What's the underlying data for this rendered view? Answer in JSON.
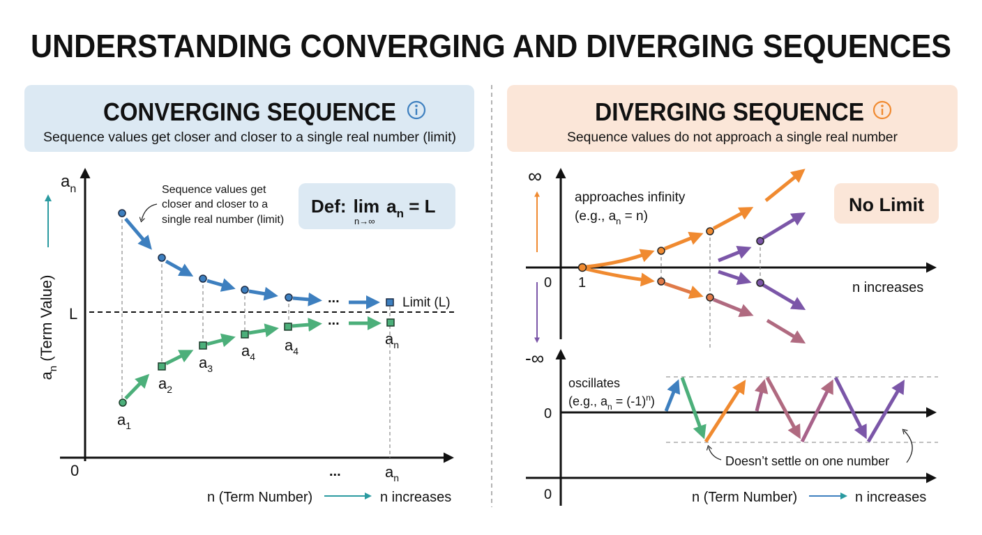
{
  "title": "UNDERSTANDING CONVERGING AND DIVERGING SEQUENCES",
  "colors": {
    "converging_panel": "#dce9f3",
    "diverging_panel": "#fbe6d8",
    "blue": "#3d7fbf",
    "green": "#4caf7a",
    "orange": "#f08a30",
    "purple": "#7b56a8",
    "mauve": "#b06a80",
    "teal": "#2a9aa0"
  },
  "converging": {
    "heading": "CONVERGING SEQUENCE",
    "info_icon": "info-circle-icon",
    "subtitle": "Sequence values get closer and closer to a single real number (limit)",
    "y_top_label": {
      "base": "a",
      "sub": "n"
    },
    "y_axis_label": {
      "base": "a",
      "sub": "n",
      "rest": " (Term Value)"
    },
    "origin": "0",
    "limit_tick": "L",
    "annotation": [
      "Sequence values get",
      "closer and closer to a",
      "single real number (limit)"
    ],
    "definition": {
      "prefix": "Def:",
      "lim": "lim",
      "under": "n→∞",
      "a": "a",
      "sub": "n",
      "rest": " = L"
    },
    "limit_label": "Limit (L)",
    "ellipsis": "...",
    "point_labels": [
      {
        "base": "a",
        "sub": "1"
      },
      {
        "base": "a",
        "sub": "2"
      },
      {
        "base": "a",
        "sub": "3"
      },
      {
        "base": "a",
        "sub": "4"
      },
      {
        "base": "a",
        "sub": "4"
      },
      {
        "base": "a",
        "sub": "n"
      }
    ],
    "x_tick_last": {
      "base": "a",
      "sub": "n"
    },
    "x_axis_label": "n (Term Number)",
    "x_increase_label": "n increases"
  },
  "diverging": {
    "heading": "DIVERGING SEQUENCE",
    "info_icon": "info-circle-icon",
    "subtitle": "Sequence values do not approach a single real number",
    "infinity": "∞",
    "neg_infinity": "-∞",
    "origin": "0",
    "one": "1",
    "approaches": "approaches infinity",
    "approaches_example": {
      "pre": "(e.g., a",
      "sub": "n",
      "post": " = n)"
    },
    "no_limit": "No Limit",
    "n_increases": "n increases",
    "oscillates": "oscillates",
    "oscillates_example": {
      "pre": "(e.g., a",
      "sub": "n",
      "mid": " = (-1)",
      "sup": "n",
      "post": ")"
    },
    "oscillation_zero": "0",
    "doesnt_settle": "Doesn’t settle on one number",
    "bottom_origin": "0",
    "x_axis_label": "n (Term Number)",
    "x_increase_label": "n increases"
  }
}
